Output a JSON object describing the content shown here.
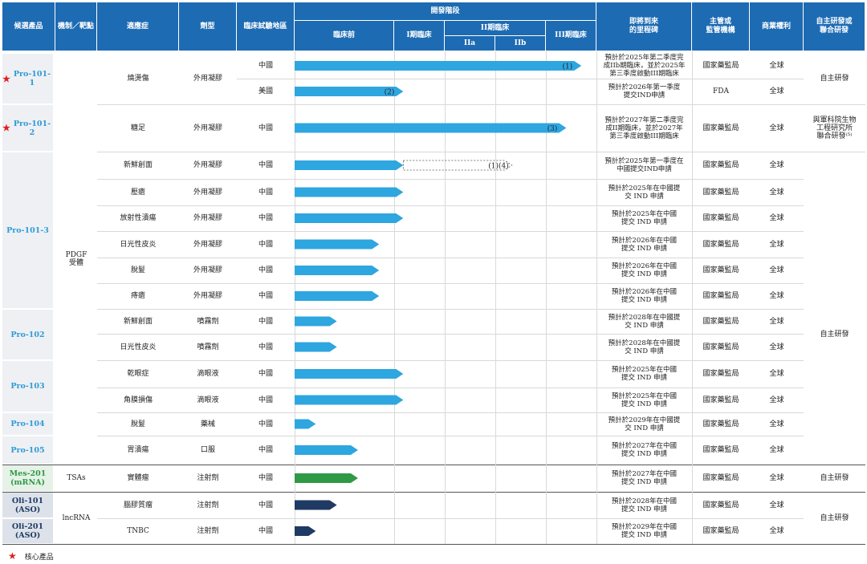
{
  "header": {
    "candidate": "候選產品",
    "mechanism": "機制／靶點",
    "indication": "適應症",
    "dosage": "劑型",
    "region": "臨床試驗地區",
    "stage_group": "開發階段",
    "preclinical": "臨床前",
    "phase1": "I期臨床",
    "phase2": "II期臨床",
    "phase2a": "IIa",
    "phase2b": "IIb",
    "phase3": "III期臨床",
    "milestone": "即將到來\n的里程碑",
    "regulator": "主管或\n監管機構",
    "rights": "商業權利",
    "partner": "自主研發或\n聯合研發"
  },
  "colors": {
    "header_bg": "#1d6bb3",
    "bar_blue": "#2ea6e0",
    "bar_green": "#2e9a45",
    "bar_navy": "#1f3a63",
    "star": "#e02020"
  },
  "products": [
    {
      "name": "Pro-101-1",
      "core": true,
      "style": "blue"
    },
    {
      "name": "Pro-101-2",
      "core": true,
      "style": "blue"
    },
    {
      "name": "Pro-101-3",
      "core": false,
      "style": "blue"
    },
    {
      "name": "Pro-102",
      "core": false,
      "style": "blue"
    },
    {
      "name": "Pro-103",
      "core": false,
      "style": "blue"
    },
    {
      "name": "Pro-104",
      "core": false,
      "style": "blue"
    },
    {
      "name": "Pro-105",
      "core": false,
      "style": "blue"
    },
    {
      "name": "Mes-201\n(mRNA)",
      "core": false,
      "style": "green"
    },
    {
      "name": "Oli-101\n(ASO)",
      "core": false,
      "style": "navy"
    },
    {
      "name": "Oli-201\n(ASO)",
      "core": false,
      "style": "navy"
    }
  ],
  "mechanisms": [
    "PDGF\n受體",
    "TSAs",
    "lncRNA"
  ],
  "rows": [
    {
      "indication": "燒燙傷",
      "dosage": "外用凝膠",
      "region": "中國",
      "progress": 0.95,
      "note": "(1)",
      "bar": "blue",
      "milestone": "預計於2025年第二季度完\n成IIb期臨床，並於2025年\n第三季度啟動III期臨床",
      "regulator": "國家藥監局",
      "rights": "全球"
    },
    {
      "indication": "",
      "dosage": "",
      "region": "美國",
      "progress": 0.36,
      "note": "(2)",
      "bar": "blue",
      "milestone": "預計於2026年第一季度\n提交IND申請",
      "regulator": "FDA",
      "rights": "全球"
    },
    {
      "indication": "糖足",
      "dosage": "外用凝膠",
      "region": "中國",
      "progress": 0.9,
      "note": "(3)",
      "bar": "blue",
      "milestone": "預計於2027年第二季度完\n成II期臨床，並於2027年\n第三季度啟動III期臨床",
      "regulator": "國家藥監局",
      "rights": "全球"
    },
    {
      "indication": "新鮮創面",
      "dosage": "外用凝膠",
      "region": "中國",
      "progress": 0.36,
      "dashed_to": 0.72,
      "note": "(1)(4)",
      "bar": "blue",
      "milestone": "預計於2025年第一季度在\n中國提交IND申請",
      "regulator": "國家藥監局",
      "rights": "全球"
    },
    {
      "indication": "壓瘡",
      "dosage": "外用凝膠",
      "region": "中國",
      "progress": 0.36,
      "note": "",
      "bar": "blue",
      "milestone": "預計於2025年在中國提\n交 IND 申請",
      "regulator": "國家藥監局",
      "rights": "全球"
    },
    {
      "indication": "放射性潰瘍",
      "dosage": "外用凝膠",
      "region": "中國",
      "progress": 0.36,
      "note": "",
      "bar": "blue",
      "milestone": "預計於2025年在中國\n提交 IND 申請",
      "regulator": "國家藥監局",
      "rights": "全球"
    },
    {
      "indication": "日光性皮炎",
      "dosage": "外用凝膠",
      "region": "中國",
      "progress": 0.28,
      "note": "",
      "bar": "blue",
      "milestone": "預計於2026年在中國\n提交 IND 申請",
      "regulator": "國家藥監局",
      "rights": "全球"
    },
    {
      "indication": "脫髮",
      "dosage": "外用凝膠",
      "region": "中國",
      "progress": 0.28,
      "note": "",
      "bar": "blue",
      "milestone": "預計於2026年在中國\n提交 IND 申請",
      "regulator": "國家藥監局",
      "rights": "全球"
    },
    {
      "indication": "痔瘡",
      "dosage": "外用凝膠",
      "region": "中國",
      "progress": 0.28,
      "note": "",
      "bar": "blue",
      "milestone": "預計於2026年在中國\n提交 IND 申請",
      "regulator": "國家藥監局",
      "rights": "全球"
    },
    {
      "indication": "新鮮創面",
      "dosage": "噴霧劑",
      "region": "中國",
      "progress": 0.14,
      "note": "",
      "bar": "blue",
      "milestone": "預計於2028年在中國提\n交 IND 申請",
      "regulator": "國家藥監局",
      "rights": "全球"
    },
    {
      "indication": "日光性皮炎",
      "dosage": "噴霧劑",
      "region": "中國",
      "progress": 0.14,
      "note": "",
      "bar": "blue",
      "milestone": "預計於2028年在中國提\n交 IND 申請",
      "regulator": "國家藥監局",
      "rights": "全球"
    },
    {
      "indication": "乾眼症",
      "dosage": "滴眼液",
      "region": "中國",
      "progress": 0.36,
      "note": "",
      "bar": "blue",
      "milestone": "預計於2025年在中國\n提交 IND 申請",
      "regulator": "國家藥監局",
      "rights": "全球"
    },
    {
      "indication": "角膜損傷",
      "dosage": "滴眼液",
      "region": "中國",
      "progress": 0.36,
      "note": "",
      "bar": "blue",
      "milestone": "預計於2025年在中國\n提交 IND 申請",
      "regulator": "國家藥監局",
      "rights": "全球"
    },
    {
      "indication": "脫髮",
      "dosage": "藥械",
      "region": "中國",
      "progress": 0.07,
      "note": "",
      "bar": "blue",
      "milestone": "預計於2029年在中國提\n交 IND 申請",
      "regulator": "國家藥監局",
      "rights": "全球"
    },
    {
      "indication": "胃潰瘍",
      "dosage": "口服",
      "region": "中國",
      "progress": 0.21,
      "note": "",
      "bar": "blue",
      "milestone": "預計於2027年在中國\n提交 IND 申請",
      "regulator": "國家藥監局",
      "rights": "全球"
    },
    {
      "indication": "實體瘤",
      "dosage": "注射劑",
      "region": "中國",
      "progress": 0.21,
      "note": "",
      "bar": "green",
      "milestone": "預計於2027年在中國\n提交 IND 申請",
      "regulator": "國家藥監局",
      "rights": "全球"
    },
    {
      "indication": "腦膠質瘤",
      "dosage": "注射劑",
      "region": "中國",
      "progress": 0.14,
      "note": "",
      "bar": "navy",
      "milestone": "預計於2028年在中國\n提交 IND 申請",
      "regulator": "國家藥監局",
      "rights": "全球"
    },
    {
      "indication": "TNBC",
      "dosage": "注射劑",
      "region": "中國",
      "progress": 0.07,
      "note": "",
      "bar": "navy",
      "milestone": "預計於2029年在中國\n提交 IND 申請",
      "regulator": "國家藥監局",
      "rights": "全球"
    }
  ],
  "partners": [
    "自主研發",
    "與軍科院生物\n工程研究所\n聯合研發⁽⁵⁾",
    "自主研發",
    "自主研發",
    "自主研發"
  ],
  "legend": {
    "core_label": "核心產品"
  }
}
